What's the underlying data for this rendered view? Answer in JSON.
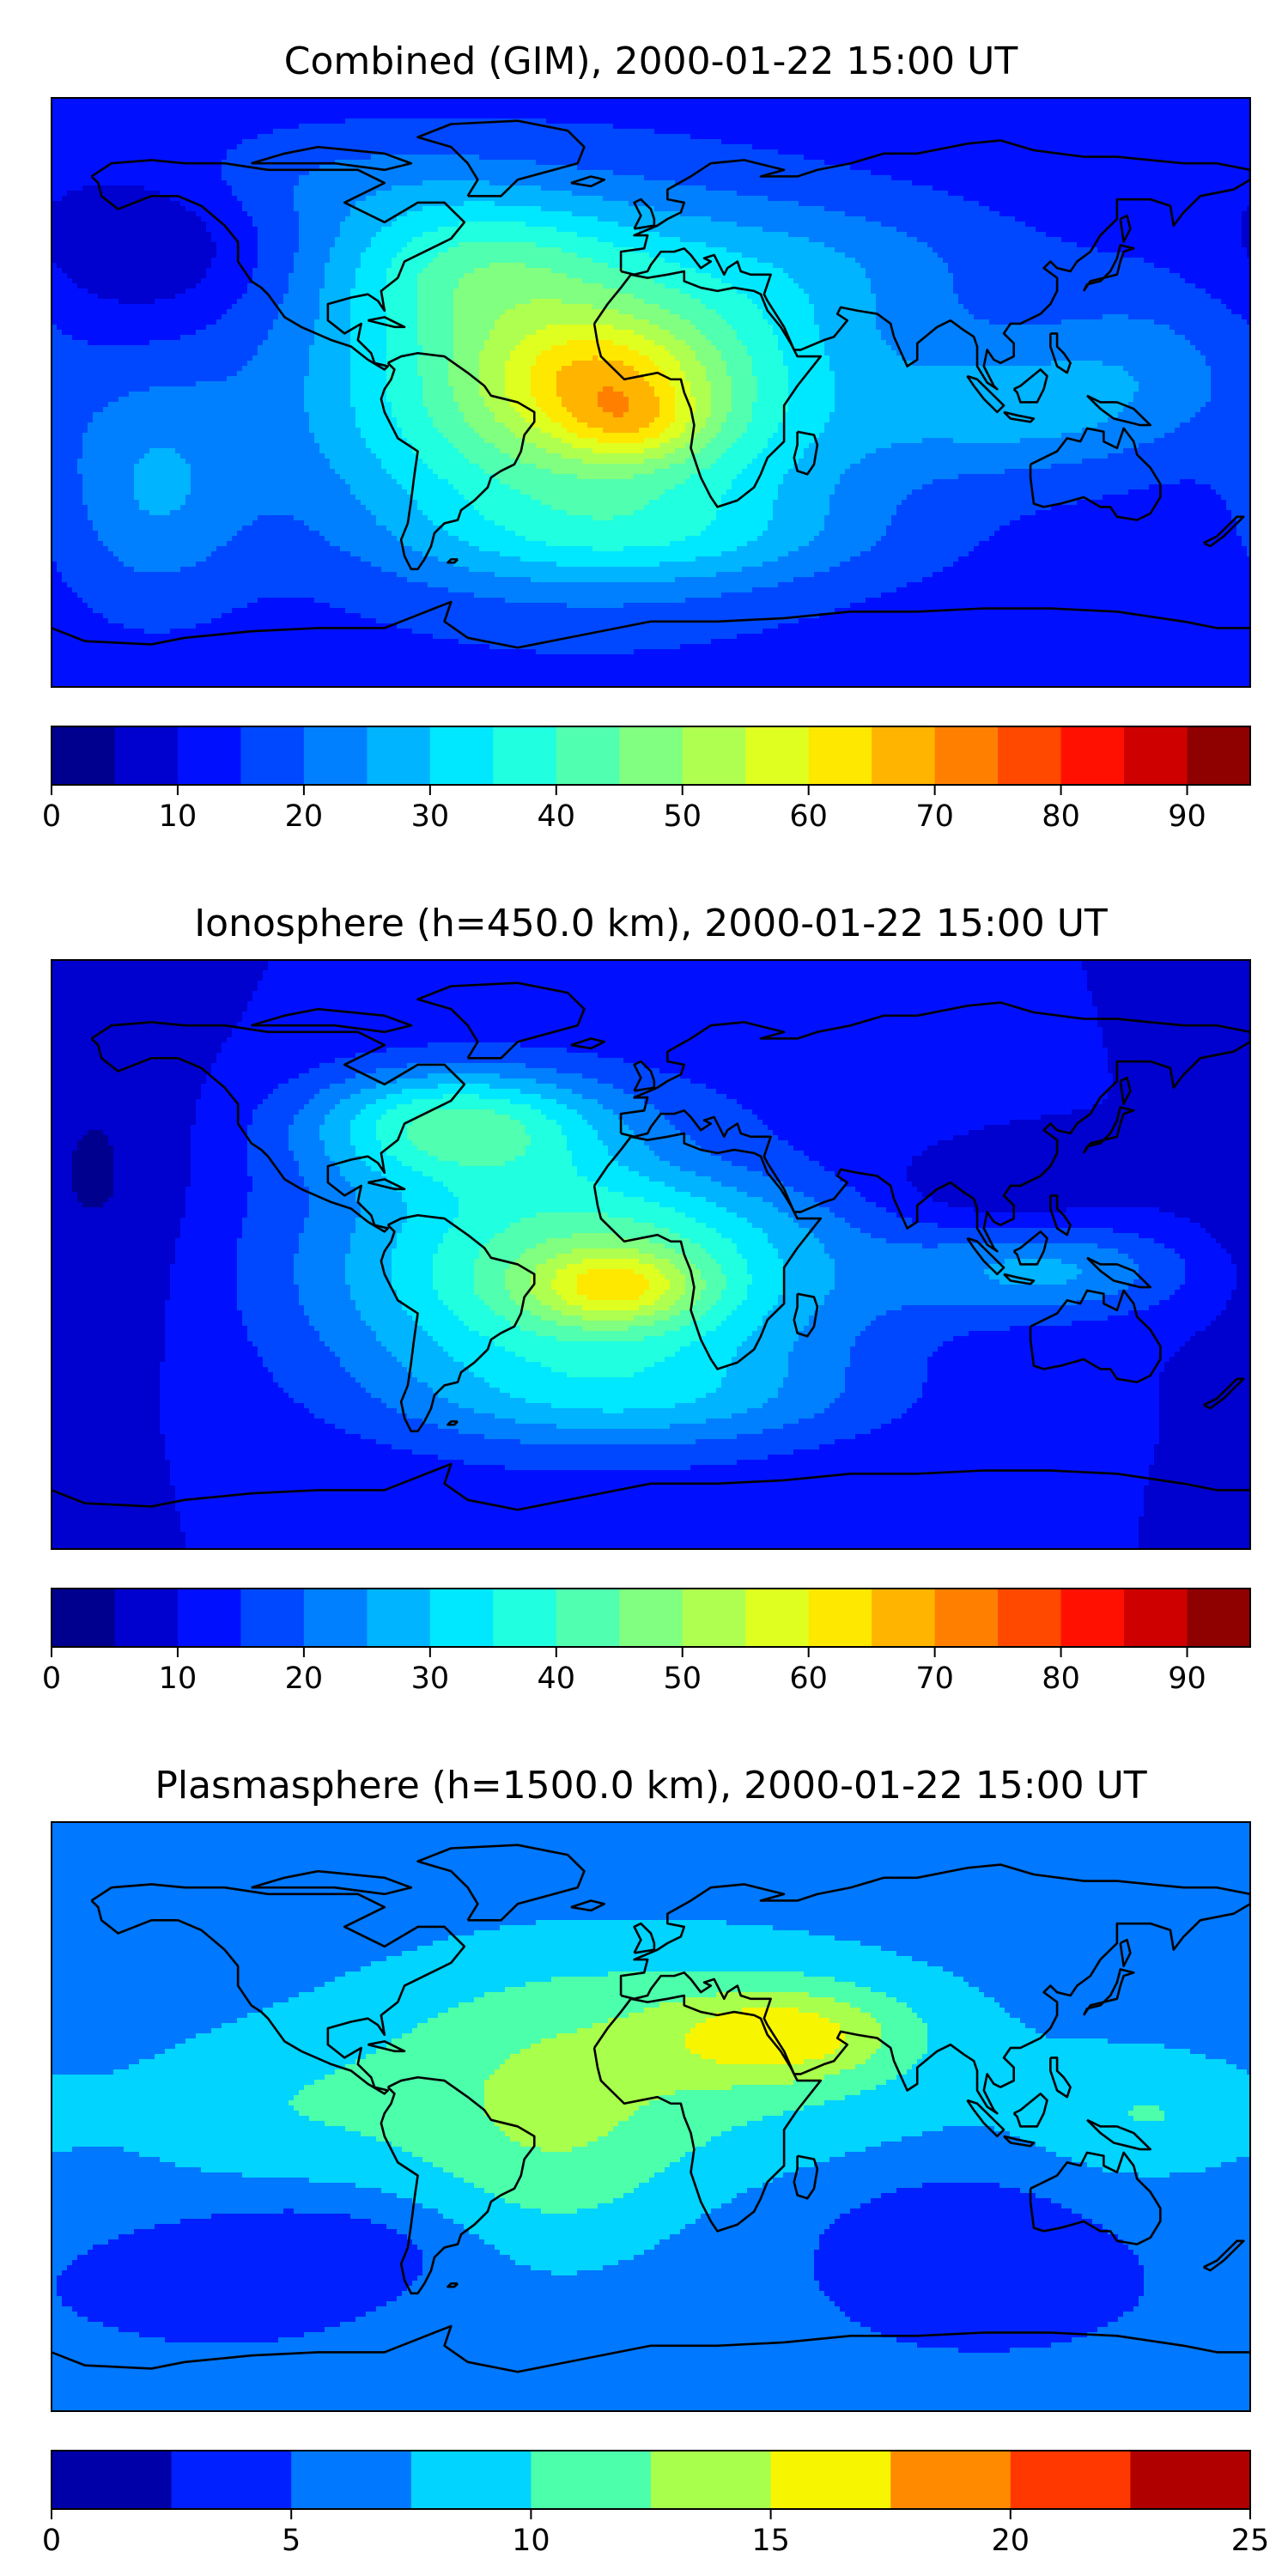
{
  "panels": [
    {
      "title": "Combined (GIM), 2000-01-22 15:00 UT",
      "colorbar": {
        "levels": [
          0,
          5,
          10,
          15,
          20,
          25,
          30,
          35,
          40,
          45,
          50,
          55,
          60,
          65,
          70,
          75,
          80,
          85,
          90,
          95
        ],
        "ticks": [
          0,
          10,
          20,
          30,
          40,
          50,
          60,
          70,
          80,
          90
        ]
      },
      "field": {
        "background": 12,
        "blobs": [
          {
            "lon": -150,
            "lat": 45,
            "sx": 25,
            "sy": 18,
            "a": -8
          },
          {
            "lon": -55,
            "lat": 40,
            "sx": 30,
            "sy": 15,
            "a": 14
          },
          {
            "lon": -150,
            "lat": -30,
            "sx": 20,
            "sy": 25,
            "a": 12
          },
          {
            "lon": -20,
            "lat": 0,
            "sx": 55,
            "sy": 35,
            "a": 40
          },
          {
            "lon": -15,
            "lat": 5,
            "sx": 22,
            "sy": 12,
            "a": 15
          },
          {
            "lon": -5,
            "lat": -10,
            "sx": 15,
            "sy": 8,
            "a": 12
          },
          {
            "lon": 110,
            "lat": -5,
            "sx": 30,
            "sy": 15,
            "a": 12
          },
          {
            "lon": 150,
            "lat": 10,
            "sx": 25,
            "sy": 20,
            "a": 8
          },
          {
            "lon": 60,
            "lat": 40,
            "sx": 40,
            "sy": 15,
            "a": 6
          },
          {
            "lon": 0,
            "lat": -45,
            "sx": 50,
            "sy": 10,
            "a": 8
          },
          {
            "lon": -100,
            "lat": 65,
            "sx": 40,
            "sy": 12,
            "a": 6
          }
        ]
      }
    },
    {
      "title": "Ionosphere  (h=450.0 km), 2000-01-22 15:00 UT",
      "colorbar": {
        "levels": [
          0,
          5,
          10,
          15,
          20,
          25,
          30,
          35,
          40,
          45,
          50,
          55,
          60,
          65,
          70,
          75,
          80,
          85,
          90,
          95
        ],
        "ticks": [
          0,
          10,
          20,
          30,
          40,
          50,
          60,
          70,
          80,
          90
        ]
      },
      "field": {
        "background": 10,
        "blobs": [
          {
            "lon": -165,
            "lat": 20,
            "sx": 20,
            "sy": 40,
            "a": -6
          },
          {
            "lon": -60,
            "lat": 40,
            "sx": 30,
            "sy": 12,
            "a": 25
          },
          {
            "lon": -20,
            "lat": -5,
            "sx": 55,
            "sy": 30,
            "a": 35
          },
          {
            "lon": -10,
            "lat": -10,
            "sx": 18,
            "sy": 8,
            "a": 20
          },
          {
            "lon": 120,
            "lat": -5,
            "sx": 30,
            "sy": 10,
            "a": 15
          },
          {
            "lon": 100,
            "lat": 20,
            "sx": 30,
            "sy": 10,
            "a": -6
          },
          {
            "lon": 20,
            "lat": 30,
            "sx": 30,
            "sy": 10,
            "a": -4
          },
          {
            "lon": 0,
            "lat": -45,
            "sx": 50,
            "sy": 10,
            "a": 8
          }
        ]
      }
    },
    {
      "title": "Plasmasphere (h=1500.0 km), 2000-01-22 15:00 UT",
      "colorbar": {
        "levels": [
          0,
          2.5,
          5,
          7.5,
          10,
          12.5,
          15,
          17.5,
          20,
          22.5,
          25
        ],
        "ticks": [
          0,
          5,
          10,
          15,
          20,
          25
        ]
      },
      "field": {
        "background": 5,
        "blobs": [
          {
            "lon": 0,
            "lat": 20,
            "sx": 80,
            "sy": 30,
            "a": 6
          },
          {
            "lon": 40,
            "lat": 25,
            "sx": 25,
            "sy": 10,
            "a": 7
          },
          {
            "lon": -30,
            "lat": -15,
            "sx": 30,
            "sy": 30,
            "a": 4
          },
          {
            "lon": -120,
            "lat": 0,
            "sx": 40,
            "sy": 18,
            "a": 3
          },
          {
            "lon": -100,
            "lat": -40,
            "sx": 30,
            "sy": 10,
            "a": -3
          },
          {
            "lon": 90,
            "lat": -35,
            "sx": 25,
            "sy": 12,
            "a": -3
          },
          {
            "lon": 150,
            "lat": 0,
            "sx": 25,
            "sy": 15,
            "a": 4
          }
        ]
      }
    }
  ],
  "colors": {
    "fine": [
      "#00008f",
      "#0000cf",
      "#0010ff",
      "#0048ff",
      "#0080ff",
      "#00b4ff",
      "#00e8ff",
      "#20ffdf",
      "#50ffaf",
      "#80ff80",
      "#afff50",
      "#dfff20",
      "#ffe800",
      "#ffb400",
      "#ff8000",
      "#ff4800",
      "#ff1000",
      "#cf0000",
      "#8f0000"
    ],
    "coarse": [
      "#0000a8",
      "#0020ff",
      "#0078ff",
      "#00d4ff",
      "#4cffaa",
      "#a8ff4c",
      "#f8f500",
      "#ff8a00",
      "#ff3800",
      "#b00000"
    ],
    "coast": "#000000"
  }
}
